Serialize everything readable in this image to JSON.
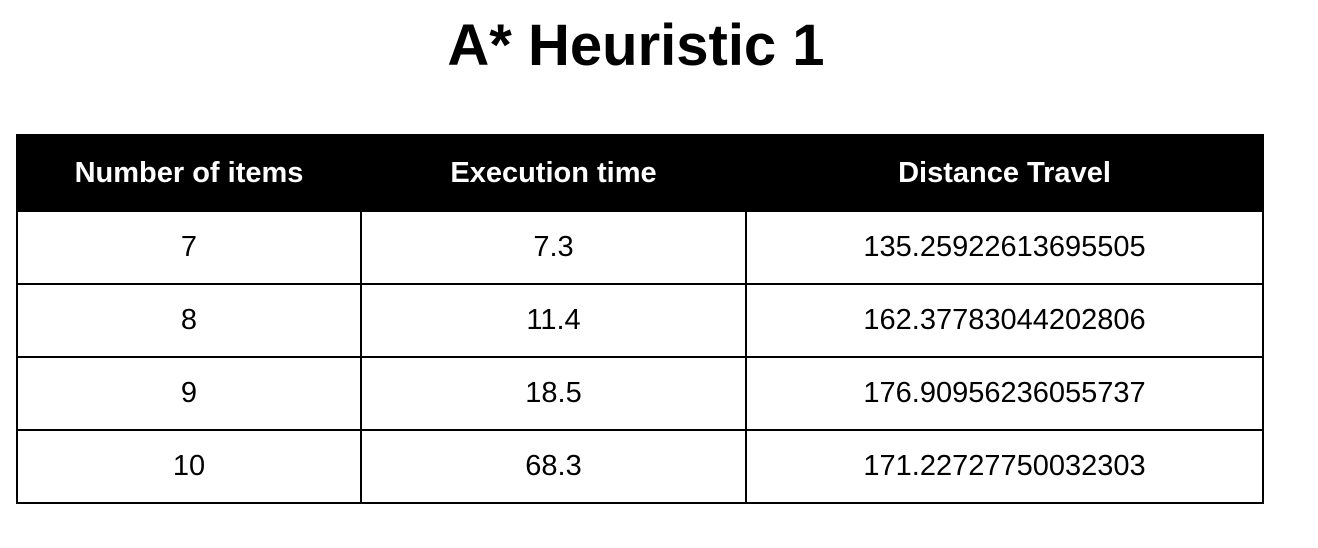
{
  "title": "A* Heuristic 1",
  "table": {
    "headers": [
      "Number of items",
      "Execution time",
      "Distance Travel"
    ],
    "rows": [
      [
        "7",
        "7.3",
        "135.25922613695505"
      ],
      [
        "8",
        "11.4",
        "162.37783044202806"
      ],
      [
        "9",
        "18.5",
        "176.90956236055737"
      ],
      [
        "10",
        "68.3",
        "171.22727750032303"
      ]
    ]
  },
  "colors": {
    "header_background": "#000000",
    "header_text": "#ffffff",
    "border": "#000000",
    "cell_background": "#ffffff"
  }
}
